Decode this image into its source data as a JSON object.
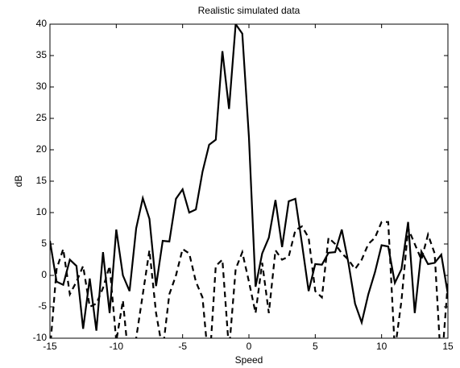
{
  "chart_data": {
    "type": "line",
    "title": "Realistic simulated data",
    "xlabel": "Speed",
    "ylabel": "dB",
    "x": [
      -15,
      -14.5,
      -14,
      -13.5,
      -13,
      -12.5,
      -12,
      -11.5,
      -11,
      -10.5,
      -10,
      -9.5,
      -9,
      -8.5,
      -8,
      -7.5,
      -7,
      -6.5,
      -6,
      -5.5,
      -5,
      -4.5,
      -4,
      -3.5,
      -3,
      -2.5,
      -2,
      -1.5,
      -1,
      -0.5,
      0,
      0.5,
      1,
      1.5,
      2,
      2.5,
      3,
      3.5,
      4,
      4.5,
      5,
      5.5,
      6,
      6.5,
      7,
      7.5,
      8,
      8.5,
      9,
      9.5,
      10,
      10.5,
      11,
      11.5,
      12,
      12.5,
      13,
      13.5,
      14,
      14.5,
      15
    ],
    "series": [
      {
        "color": "#000000",
        "linestyle": "solid",
        "values": [
          5.5,
          -1,
          -1.5,
          2.5,
          1.5,
          -8.5,
          -0.5,
          -8.8,
          3.7,
          -6,
          7.3,
          0,
          -2.5,
          7.5,
          12.3,
          9,
          -1.7,
          5.5,
          5.4,
          12.2,
          13.7,
          10,
          10.5,
          16.5,
          20.8,
          21.6,
          35.7,
          26.5,
          40,
          38.5,
          22,
          -1.8,
          3.5,
          6,
          12,
          4.5,
          11.8,
          12.2,
          5,
          -2.5,
          1.8,
          1.7,
          3.6,
          3.7,
          7.3,
          2,
          -4.5,
          -7.5,
          -3,
          0.5,
          4.8,
          4.6,
          -1.2,
          1,
          8.5,
          -6,
          3.8,
          1.8,
          2,
          3.3,
          -3
        ]
      },
      {
        "color": "#000000",
        "linestyle": "dashed",
        "values": [
          -12,
          1,
          4.2,
          -3,
          -1,
          1.5,
          -5,
          -4.5,
          -2,
          1.5,
          -10.5,
          -4,
          -15,
          -10,
          -3,
          4,
          -6,
          -12,
          -3,
          0,
          4.2,
          3.5,
          -1,
          -3.5,
          -15,
          1.5,
          2.5,
          -12,
          1,
          3.7,
          -1,
          -6,
          2,
          -6,
          4,
          2.5,
          3,
          7.2,
          7.8,
          6,
          -2.5,
          -3.5,
          6,
          5,
          3.5,
          2.5,
          1,
          2.5,
          5,
          6,
          8.5,
          8.5,
          -12,
          -4,
          7.5,
          5,
          2.5,
          6.5,
          3.5,
          -15,
          -1
        ]
      }
    ],
    "xlim": [
      -15,
      15
    ],
    "xticks": [
      -15,
      -10,
      -5,
      0,
      5,
      10,
      15
    ],
    "ylim": [
      -10,
      40
    ],
    "yticks": [
      -10,
      -5,
      0,
      5,
      10,
      15,
      20,
      25,
      30,
      35,
      40
    ]
  }
}
